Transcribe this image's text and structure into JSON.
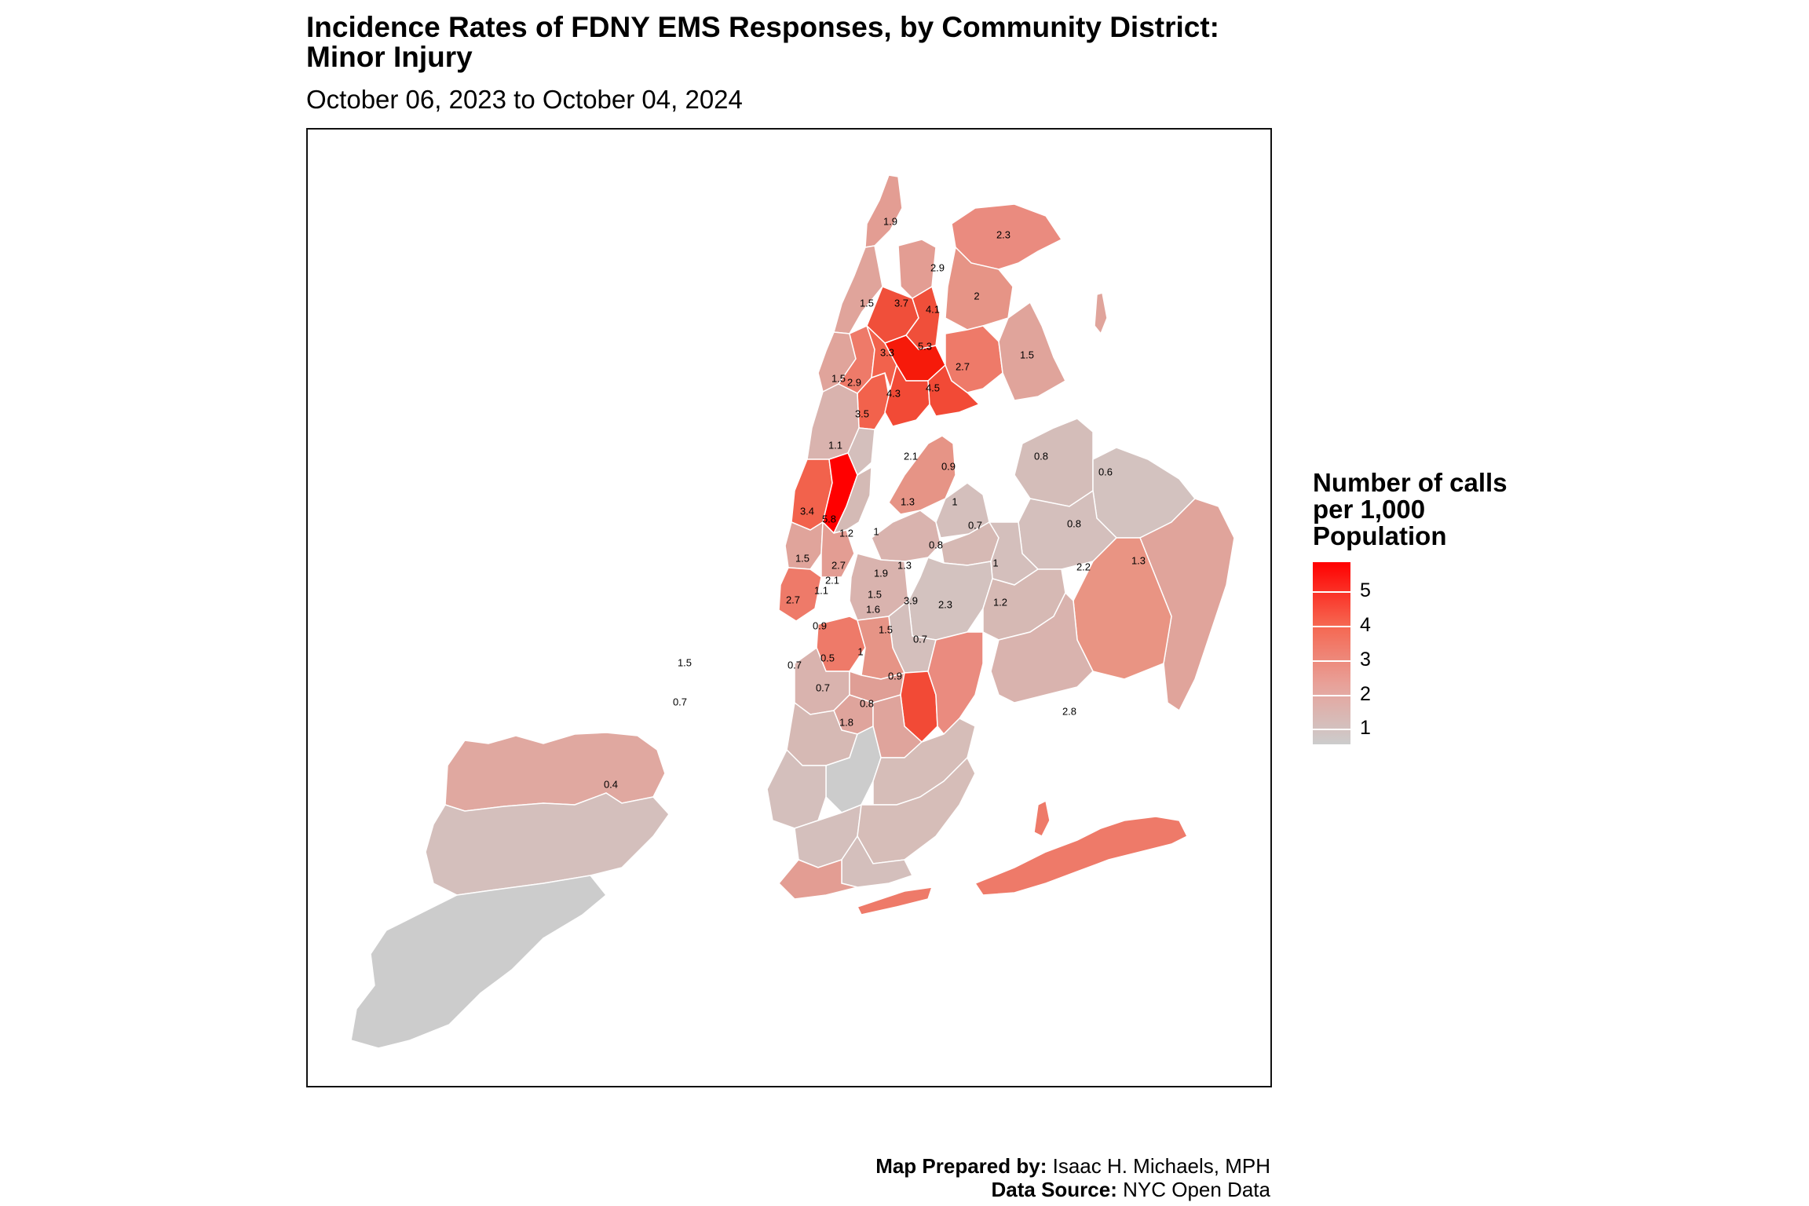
{
  "title_line1": "Incidence Rates of FDNY EMS Responses, by Community District:",
  "title_line2": "Minor Injury",
  "subtitle": "October 06, 2023 to October 04, 2024",
  "legend": {
    "title_line1": "Number of calls",
    "title_line2": "per 1,000",
    "title_line3": "Population",
    "ticks": [
      "5",
      "4",
      "3",
      "2",
      "1"
    ],
    "colors": {
      "low": "#cccccc",
      "high": "#ff0000"
    }
  },
  "credits": {
    "prepared_label": "Map Prepared by:",
    "prepared_value": "Isaac H. Michaels, MPH",
    "source_label": "Data Source:",
    "source_value": "NYC Open Data"
  },
  "districts": {
    "manhattan": [
      "1.9",
      "1.5",
      "1.5",
      "2.9",
      "3.5",
      "1.1",
      "3.4",
      "5.8",
      "1.2",
      "1.5",
      "2.1",
      "2.7"
    ],
    "bronx": [
      "2.9",
      "3.7",
      "4.1",
      "3.3",
      "5.3",
      "4.3",
      "4.5",
      "2.3",
      "2",
      "2.7",
      "1.5"
    ],
    "queens": [
      "0.8",
      "2.1",
      "0.9",
      "1.3",
      "1",
      "0.7",
      "0.8",
      "0.6",
      "0.8",
      "1",
      "1.3",
      "2.2",
      "1.2",
      "2.8"
    ],
    "brooklyn": [
      "1",
      "0.7",
      "2.7",
      "1.9",
      "1.3",
      "1.1",
      "1.5",
      "3.9",
      "2.3",
      "1.6",
      "1.5",
      "0.9",
      "0.5",
      "1",
      "0.7",
      "0.7",
      "0.9",
      "0.8",
      "1.8"
    ],
    "staten_island": [
      "1.5",
      "0.7",
      "0.4"
    ]
  }
}
